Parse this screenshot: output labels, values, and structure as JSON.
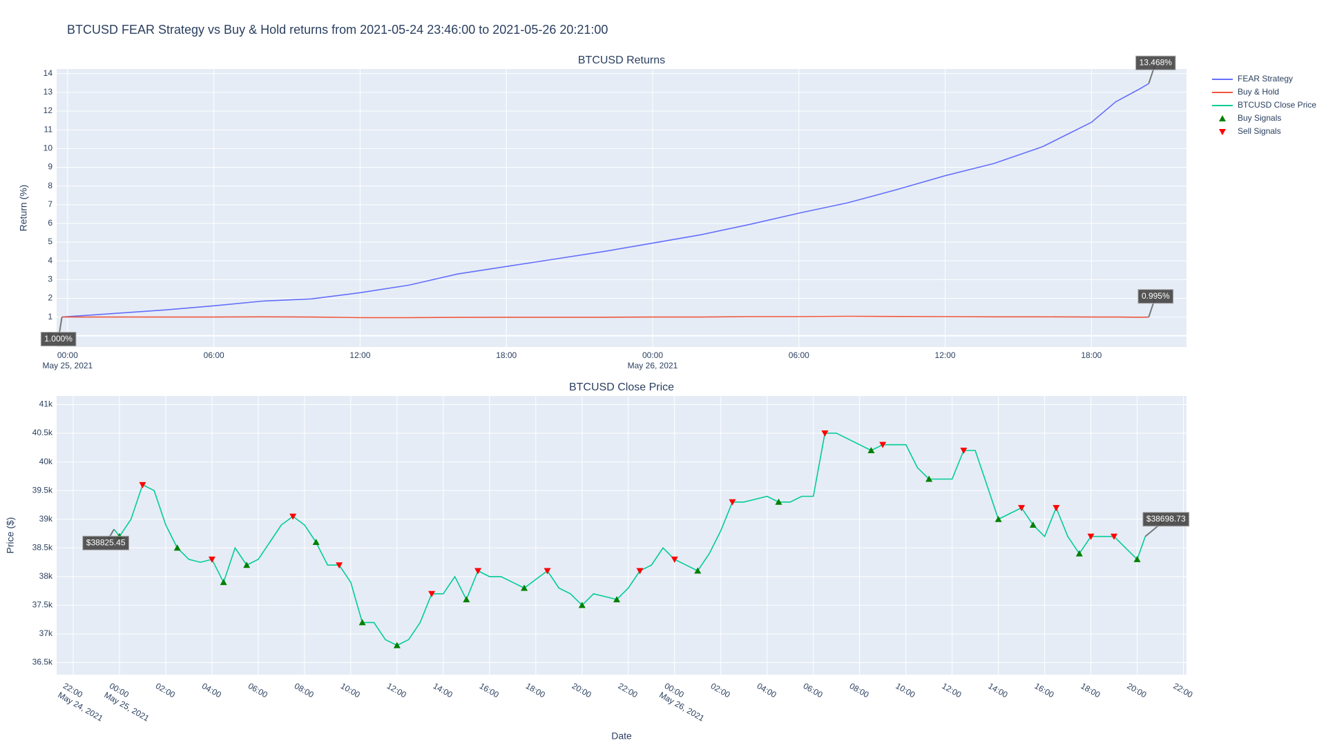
{
  "title": "BTCUSD FEAR Strategy vs Buy & Hold returns from 2021-05-24 23:46:00 to 2021-05-26 20:21:00",
  "chart_data": [
    {
      "type": "line",
      "title": "BTCUSD Returns",
      "y_label": "Return (%)",
      "xlim": [
        "2021-05-24 23:33",
        "2021-05-26 21:54"
      ],
      "ylim": [
        -0.6,
        14.25
      ],
      "grid": true,
      "xticks": [
        {
          "value": "2021-05-25 00:00",
          "label": "00:00\nMay 25, 2021"
        },
        {
          "value": "2021-05-25 06:00",
          "label": "06:00"
        },
        {
          "value": "2021-05-25 12:00",
          "label": "12:00"
        },
        {
          "value": "2021-05-25 18:00",
          "label": "18:00"
        },
        {
          "value": "2021-05-26 00:00",
          "label": "00:00\nMay 26, 2021"
        },
        {
          "value": "2021-05-26 06:00",
          "label": "06:00"
        },
        {
          "value": "2021-05-26 12:00",
          "label": "12:00"
        },
        {
          "value": "2021-05-26 18:00",
          "label": "18:00"
        }
      ],
      "yticks": [
        0,
        1,
        2,
        3,
        4,
        5,
        6,
        7,
        8,
        9,
        10,
        11,
        12,
        13,
        14
      ],
      "x": [
        "2021-05-24 23:46",
        "2021-05-25 02:00",
        "2021-05-25 04:00",
        "2021-05-25 06:00",
        "2021-05-25 08:00",
        "2021-05-25 10:00",
        "2021-05-25 12:00",
        "2021-05-25 14:00",
        "2021-05-25 16:00",
        "2021-05-25 18:00",
        "2021-05-25 20:00",
        "2021-05-25 22:00",
        "2021-05-26 00:00",
        "2021-05-26 02:00",
        "2021-05-26 04:00",
        "2021-05-26 06:00",
        "2021-05-26 08:00",
        "2021-05-26 10:00",
        "2021-05-26 12:00",
        "2021-05-26 14:00",
        "2021-05-26 16:00",
        "2021-05-26 18:00",
        "2021-05-26 19:00",
        "2021-05-26 20:00",
        "2021-05-26 20:21"
      ],
      "series": [
        {
          "name": "FEAR Strategy",
          "color": "#636efa",
          "values": [
            1.0,
            1.2,
            1.38,
            1.6,
            1.85,
            1.97,
            2.3,
            2.7,
            3.3,
            3.7,
            4.1,
            4.5,
            4.95,
            5.4,
            5.95,
            6.55,
            7.1,
            7.8,
            8.55,
            9.2,
            10.1,
            11.4,
            12.5,
            13.2,
            13.468
          ]
        },
        {
          "name": "Buy & Hold",
          "color": "#ef553b",
          "values": [
            1.0,
            1.0,
            1.0,
            1.0,
            1.01,
            1.0,
            0.97,
            0.97,
            0.98,
            0.99,
            0.99,
            0.99,
            1.0,
            1.0,
            1.02,
            1.02,
            1.04,
            1.03,
            1.02,
            1.01,
            1.01,
            1.0,
            1.0,
            0.99,
            0.995
          ]
        }
      ],
      "annotations": [
        {
          "text": "1.000%",
          "x": "2021-05-24 23:46",
          "y": 1.0
        },
        {
          "text": "13.468%",
          "x": "2021-05-26 20:21",
          "y": 13.468
        },
        {
          "text": "0.995%",
          "x": "2021-05-26 20:21",
          "y": 0.995
        }
      ]
    },
    {
      "type": "line",
      "title": "BTCUSD Close Price",
      "x_label": "Date",
      "y_label": "Price ($)",
      "xlim": [
        "2021-05-24 21:17",
        "2021-05-26 22:08"
      ],
      "ylim": [
        36290,
        41150
      ],
      "grid": true,
      "xticks": [
        {
          "value": "2021-05-24 22:00",
          "label": "22:00\nMay 24, 2021"
        },
        {
          "value": "2021-05-25 00:00",
          "label": "00:00\nMay 25, 2021"
        },
        {
          "value": "2021-05-25 02:00",
          "label": "02:00"
        },
        {
          "value": "2021-05-25 04:00",
          "label": "04:00"
        },
        {
          "value": "2021-05-25 06:00",
          "label": "06:00"
        },
        {
          "value": "2021-05-25 08:00",
          "label": "08:00"
        },
        {
          "value": "2021-05-25 10:00",
          "label": "10:00"
        },
        {
          "value": "2021-05-25 12:00",
          "label": "12:00"
        },
        {
          "value": "2021-05-25 14:00",
          "label": "14:00"
        },
        {
          "value": "2021-05-25 16:00",
          "label": "16:00"
        },
        {
          "value": "2021-05-25 18:00",
          "label": "18:00"
        },
        {
          "value": "2021-05-25 20:00",
          "label": "20:00"
        },
        {
          "value": "2021-05-25 22:00",
          "label": "22:00"
        },
        {
          "value": "2021-05-26 00:00",
          "label": "00:00\nMay 26, 2021"
        },
        {
          "value": "2021-05-26 02:00",
          "label": "02:00"
        },
        {
          "value": "2021-05-26 04:00",
          "label": "04:00"
        },
        {
          "value": "2021-05-26 06:00",
          "label": "06:00"
        },
        {
          "value": "2021-05-26 08:00",
          "label": "08:00"
        },
        {
          "value": "2021-05-26 10:00",
          "label": "10:00"
        },
        {
          "value": "2021-05-26 12:00",
          "label": "12:00"
        },
        {
          "value": "2021-05-26 14:00",
          "label": "14:00"
        },
        {
          "value": "2021-05-26 16:00",
          "label": "16:00"
        },
        {
          "value": "2021-05-26 18:00",
          "label": "18:00"
        },
        {
          "value": "2021-05-26 20:00",
          "label": "20:00"
        },
        {
          "value": "2021-05-26 22:00",
          "label": "22:00"
        }
      ],
      "yticks": [
        {
          "value": 36500,
          "label": "36.5k"
        },
        {
          "value": 37000,
          "label": "37k"
        },
        {
          "value": 37500,
          "label": "37.5k"
        },
        {
          "value": 38000,
          "label": "38k"
        },
        {
          "value": 38500,
          "label": "38.5k"
        },
        {
          "value": 39000,
          "label": "39k"
        },
        {
          "value": 39500,
          "label": "39.5k"
        },
        {
          "value": 40000,
          "label": "40k"
        },
        {
          "value": 40500,
          "label": "40.5k"
        },
        {
          "value": 41000,
          "label": "41k"
        }
      ],
      "series": [
        {
          "name": "BTCUSD Close Price",
          "color": "#00cc96",
          "mode": "line",
          "x": [
            "2021-05-24 23:46",
            "2021-05-25 00:00",
            "2021-05-25 00:30",
            "2021-05-25 01:00",
            "2021-05-25 01:30",
            "2021-05-25 02:00",
            "2021-05-25 02:30",
            "2021-05-25 03:00",
            "2021-05-25 03:30",
            "2021-05-25 04:00",
            "2021-05-25 04:30",
            "2021-05-25 05:00",
            "2021-05-25 05:30",
            "2021-05-25 06:00",
            "2021-05-25 06:30",
            "2021-05-25 07:00",
            "2021-05-25 07:30",
            "2021-05-25 08:00",
            "2021-05-25 08:30",
            "2021-05-25 09:00",
            "2021-05-25 09:30",
            "2021-05-25 10:00",
            "2021-05-25 10:30",
            "2021-05-25 11:00",
            "2021-05-25 11:30",
            "2021-05-25 12:00",
            "2021-05-25 12:30",
            "2021-05-25 13:00",
            "2021-05-25 13:30",
            "2021-05-25 14:00",
            "2021-05-25 14:30",
            "2021-05-25 15:00",
            "2021-05-25 15:30",
            "2021-05-25 16:00",
            "2021-05-25 16:30",
            "2021-05-25 17:00",
            "2021-05-25 17:30",
            "2021-05-25 18:00",
            "2021-05-25 18:30",
            "2021-05-25 19:00",
            "2021-05-25 19:30",
            "2021-05-25 20:00",
            "2021-05-25 20:30",
            "2021-05-25 21:00",
            "2021-05-25 21:30",
            "2021-05-25 22:00",
            "2021-05-25 22:30",
            "2021-05-25 23:00",
            "2021-05-25 23:30",
            "2021-05-26 00:00",
            "2021-05-26 00:30",
            "2021-05-26 01:00",
            "2021-05-26 01:30",
            "2021-05-26 02:00",
            "2021-05-26 02:30",
            "2021-05-26 03:00",
            "2021-05-26 03:30",
            "2021-05-26 04:00",
            "2021-05-26 04:30",
            "2021-05-26 05:00",
            "2021-05-26 05:30",
            "2021-05-26 06:00",
            "2021-05-26 06:30",
            "2021-05-26 07:00",
            "2021-05-26 07:30",
            "2021-05-26 08:00",
            "2021-05-26 08:30",
            "2021-05-26 09:00",
            "2021-05-26 09:30",
            "2021-05-26 10:00",
            "2021-05-26 10:30",
            "2021-05-26 11:00",
            "2021-05-26 11:30",
            "2021-05-26 12:00",
            "2021-05-26 12:30",
            "2021-05-26 13:00",
            "2021-05-26 13:30",
            "2021-05-26 14:00",
            "2021-05-26 14:30",
            "2021-05-26 15:00",
            "2021-05-26 15:30",
            "2021-05-26 16:00",
            "2021-05-26 16:30",
            "2021-05-26 17:00",
            "2021-05-26 17:30",
            "2021-05-26 18:00",
            "2021-05-26 18:30",
            "2021-05-26 19:00",
            "2021-05-26 19:30",
            "2021-05-26 20:00",
            "2021-05-26 20:21"
          ],
          "values": [
            38825.45,
            38700,
            39000,
            39600,
            39500,
            38900,
            38500,
            38300,
            38250,
            38300,
            37900,
            38500,
            38200,
            38300,
            38600,
            38900,
            39050,
            38900,
            38600,
            38200,
            38200,
            37900,
            37200,
            37200,
            36900,
            36800,
            36900,
            37200,
            37700,
            37700,
            38000,
            37600,
            38100,
            38000,
            38000,
            37900,
            37800,
            37950,
            38100,
            37800,
            37700,
            37500,
            37700,
            37650,
            37600,
            37800,
            38100,
            38200,
            38500,
            38300,
            38200,
            38100,
            38400,
            38800,
            39300,
            39300,
            39350,
            39400,
            39300,
            39300,
            39400,
            39400,
            40500,
            40500,
            40400,
            40300,
            40200,
            40300,
            40300,
            40300,
            39900,
            39700,
            39700,
            39700,
            40200,
            40200,
            39600,
            39000,
            39100,
            39200,
            38900,
            38700,
            39200,
            38700,
            38400,
            38700,
            38700,
            38700,
            38500,
            38300,
            38698.73
          ]
        },
        {
          "name": "Buy Signals",
          "color": "#008000",
          "mode": "markers",
          "marker": "triangle-up",
          "x": [
            "2021-05-25 00:00",
            "2021-05-25 02:30",
            "2021-05-25 04:30",
            "2021-05-25 05:30",
            "2021-05-25 08:30",
            "2021-05-25 10:30",
            "2021-05-25 12:00",
            "2021-05-25 15:00",
            "2021-05-25 17:30",
            "2021-05-25 20:00",
            "2021-05-25 21:30",
            "2021-05-26 01:00",
            "2021-05-26 04:30",
            "2021-05-26 08:30",
            "2021-05-26 11:00",
            "2021-05-26 14:00",
            "2021-05-26 15:30",
            "2021-05-26 17:30",
            "2021-05-26 20:00"
          ],
          "values": [
            38700,
            38500,
            37900,
            38200,
            38600,
            37200,
            36800,
            37600,
            37800,
            37500,
            37600,
            38100,
            39300,
            40200,
            39700,
            39000,
            38900,
            38400,
            38300
          ]
        },
        {
          "name": "Sell Signals",
          "color": "#ff0000",
          "mode": "markers",
          "marker": "triangle-down",
          "x": [
            "2021-05-25 01:00",
            "2021-05-25 04:00",
            "2021-05-25 07:30",
            "2021-05-25 09:30",
            "2021-05-25 13:30",
            "2021-05-25 15:30",
            "2021-05-25 18:30",
            "2021-05-25 22:30",
            "2021-05-26 00:00",
            "2021-05-26 02:30",
            "2021-05-26 06:30",
            "2021-05-26 09:00",
            "2021-05-26 12:30",
            "2021-05-26 15:00",
            "2021-05-26 16:30",
            "2021-05-26 18:00",
            "2021-05-26 19:00"
          ],
          "values": [
            39600,
            38300,
            39050,
            38200,
            37700,
            38100,
            38100,
            38100,
            38300,
            39300,
            40500,
            40300,
            40200,
            39200,
            39200,
            38700,
            38700
          ]
        }
      ],
      "annotations": [
        {
          "text": "$38825.45",
          "x": "2021-05-24 23:46",
          "y": 38825.45
        },
        {
          "text": "$38698.73",
          "x": "2021-05-26 20:21",
          "y": 38698.73
        }
      ]
    }
  ]
}
